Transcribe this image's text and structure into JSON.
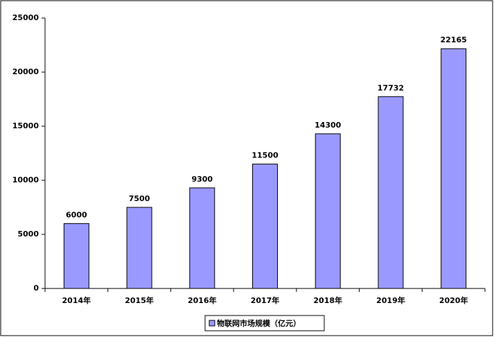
{
  "chart_data": {
    "type": "bar",
    "categories": [
      "2014年",
      "2015年",
      "2016年",
      "2017年",
      "2018年",
      "2019年",
      "2020年"
    ],
    "series": [
      {
        "name": "物联网市场规模（亿元）",
        "color": "#9999ff",
        "values": [
          6000,
          7500,
          9300,
          11500,
          14300,
          17732,
          22165
        ]
      }
    ],
    "ylim": [
      0,
      25000
    ],
    "yticks": [
      0,
      5000,
      10000,
      15000,
      20000,
      25000
    ],
    "grid": false,
    "legend": "bottom"
  }
}
